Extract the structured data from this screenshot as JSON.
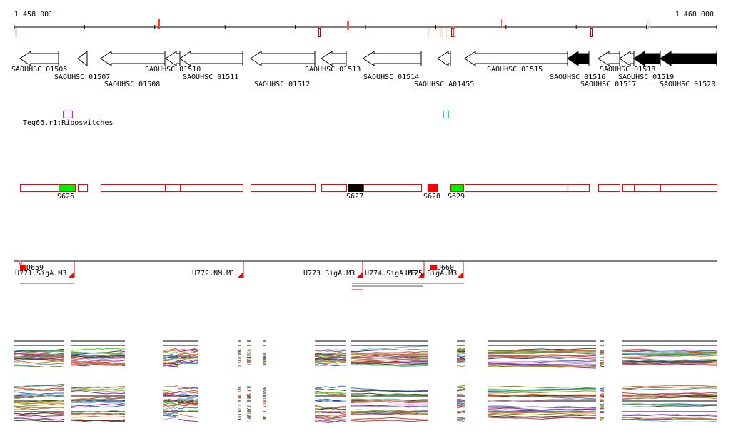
{
  "ruler": {
    "start_label": "1 458 001",
    "end_label": "1 468 000"
  },
  "genes": [
    {
      "label": "SAOUHSC_01505",
      "dir": "left",
      "filled": false
    },
    {
      "label": "SAOUHSC_01507",
      "dir": "left",
      "filled": false
    },
    {
      "label": "SAOUHSC_01508",
      "dir": "left",
      "filled": false
    },
    {
      "label": "SAOUHSC_01510",
      "dir": "left",
      "filled": false
    },
    {
      "label": "SAOUHSC_01511",
      "dir": "left",
      "filled": false
    },
    {
      "label": "SAOUHSC_01512",
      "dir": "left",
      "filled": false
    },
    {
      "label": "SAOUHSC_01513",
      "dir": "left",
      "filled": false
    },
    {
      "label": "SAOUHSC_01514",
      "dir": "left",
      "filled": false
    },
    {
      "label": "SAOUHSC_A01455",
      "dir": "left",
      "filled": false
    },
    {
      "label": "SAOUHSC_01515",
      "dir": "left",
      "filled": false
    },
    {
      "label": "SAOUHSC_01516",
      "dir": "left",
      "filled": true
    },
    {
      "label": "SAOUHSC_01517",
      "dir": "left",
      "filled": false
    },
    {
      "label": "SAOUHSC_01518",
      "dir": "left",
      "filled": false
    },
    {
      "label": "SAOUHSC_01519",
      "dir": "left",
      "filled": true
    },
    {
      "label": "SAOUHSC_01520",
      "dir": "left",
      "filled": true
    }
  ],
  "riboswitch": {
    "label": "Teg66.r1:Riboswitches",
    "color_a": "#ff00ff",
    "color_b": "#00e0e0"
  },
  "segments": {
    "labels": [
      "S626",
      "S627",
      "S628",
      "S629"
    ],
    "outline_color": "#ff0000",
    "green": "#00ee00"
  },
  "promoters": {
    "labels": [
      "U771.SigA.M3",
      "U772.NM.M1",
      "U773.SigA.M3",
      "U774.SigA.M3",
      "U775.SigA.M3"
    ],
    "terminators": [
      "D659",
      "D660"
    ]
  },
  "expression": {
    "palette": [
      "#e04020",
      "#8a8a10",
      "#2a70d0",
      "#a020a0",
      "#50d020",
      "#d07020",
      "#60b0f0",
      "#c04050",
      "#404040",
      "#b08040",
      "#e080c0",
      "#20a080"
    ]
  }
}
